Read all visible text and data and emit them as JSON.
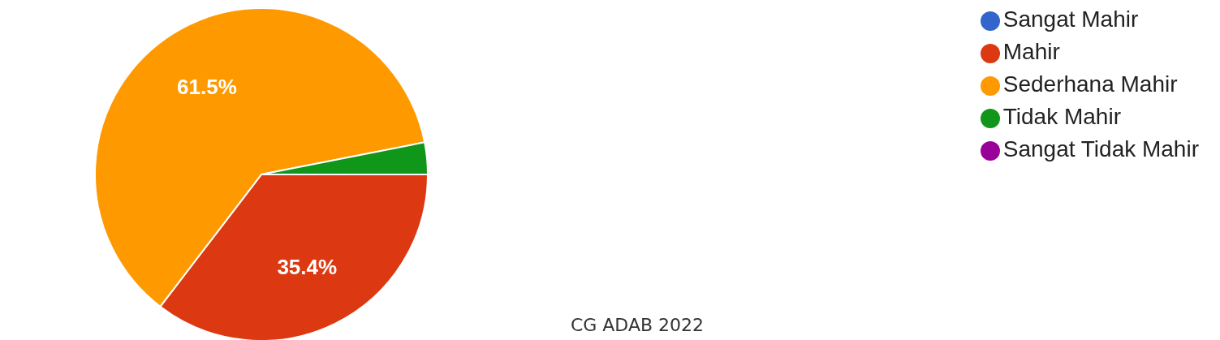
{
  "chart_data": {
    "type": "pie",
    "categories": [
      "Sangat Mahir",
      "Mahir",
      "Sederhana Mahir",
      "Tidak Mahir",
      "Sangat Tidak Mahir"
    ],
    "values": [
      0,
      35.4,
      61.5,
      3.1,
      0
    ],
    "colors": [
      "#3366cc",
      "#dc3912",
      "#ff9900",
      "#109618",
      "#990099"
    ],
    "value_labels": [
      null,
      "35.4%",
      "61.5%",
      null,
      null
    ],
    "legend": "top right",
    "annotations": [
      "CG ADAB 2022"
    ]
  }
}
